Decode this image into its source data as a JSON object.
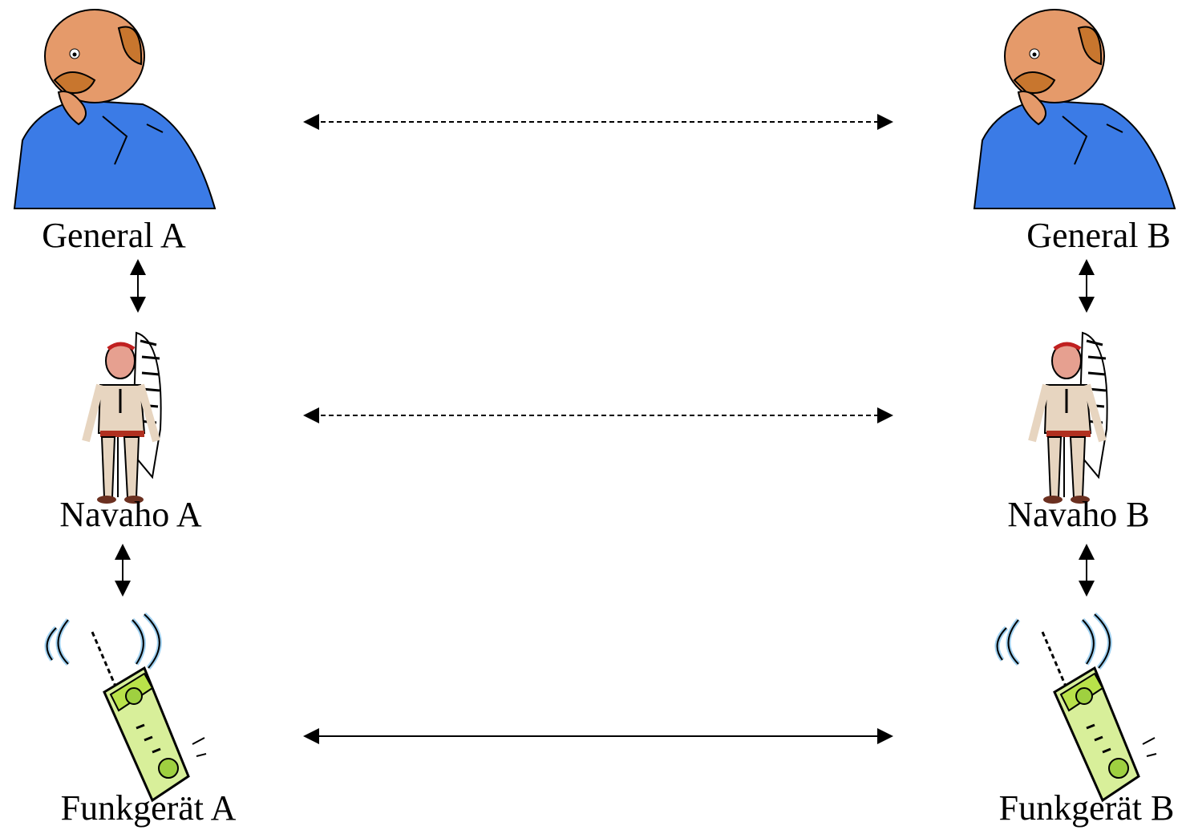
{
  "nodes": [
    {
      "label": "General A"
    },
    {
      "label": "General B"
    },
    {
      "label": "Navaho A"
    },
    {
      "label": "Navaho B"
    },
    {
      "label": "Funkgerät A"
    },
    {
      "label": "Funkgerät B"
    }
  ]
}
